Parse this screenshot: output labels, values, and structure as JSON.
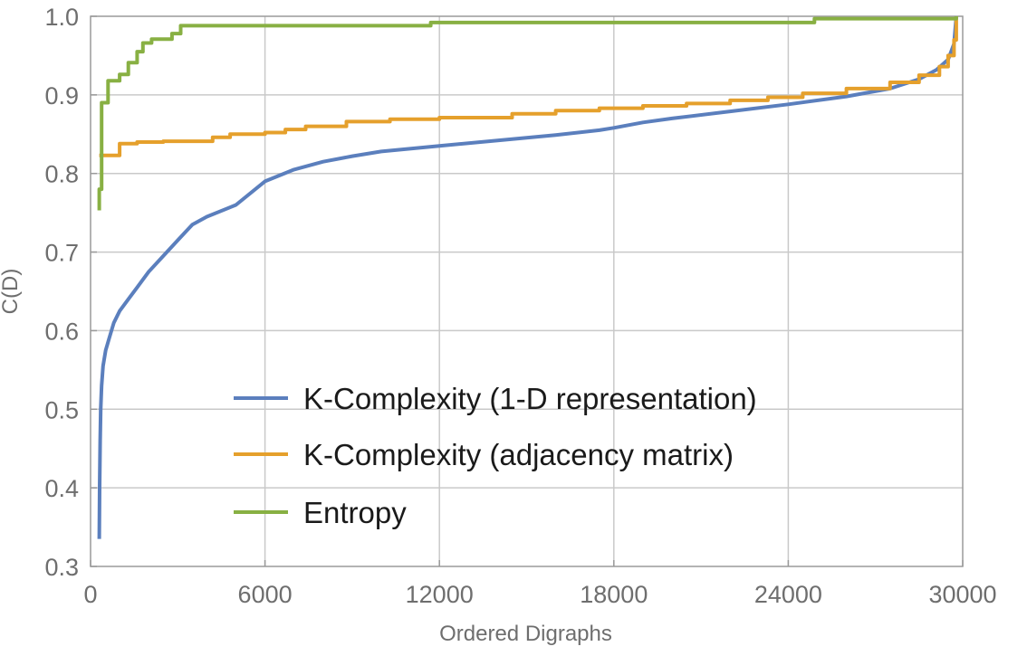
{
  "chart_data": {
    "type": "line",
    "title": "",
    "xlabel": "Ordered Digraphs",
    "ylabel": "C(D)",
    "xlim": [
      0,
      30000
    ],
    "ylim": [
      0.3,
      1.0
    ],
    "x_ticks": [
      0,
      6000,
      12000,
      18000,
      24000,
      30000
    ],
    "y_ticks": [
      0.3,
      0.4,
      0.5,
      0.6,
      0.7,
      0.8,
      0.9,
      1.0
    ],
    "y_tick_labels": [
      "0.3",
      "0.4",
      "0.5",
      "0.6",
      "0.7",
      "0.8",
      "0.9",
      "1.0"
    ],
    "grid": true,
    "legend_position": "bottom-center",
    "series": [
      {
        "name": "K-Complexity (1-D representation)",
        "color": "#5b7fbd",
        "step": false,
        "points": [
          [
            300,
            0.335
          ],
          [
            310,
            0.4
          ],
          [
            330,
            0.46
          ],
          [
            350,
            0.5
          ],
          [
            380,
            0.53
          ],
          [
            430,
            0.555
          ],
          [
            520,
            0.575
          ],
          [
            640,
            0.59
          ],
          [
            800,
            0.61
          ],
          [
            1000,
            0.625
          ],
          [
            1300,
            0.64
          ],
          [
            1600,
            0.655
          ],
          [
            2000,
            0.675
          ],
          [
            2500,
            0.695
          ],
          [
            3000,
            0.715
          ],
          [
            3500,
            0.735
          ],
          [
            4000,
            0.745
          ],
          [
            5000,
            0.76
          ],
          [
            6000,
            0.79
          ],
          [
            7000,
            0.805
          ],
          [
            8000,
            0.815
          ],
          [
            9000,
            0.822
          ],
          [
            10000,
            0.828
          ],
          [
            12000,
            0.835
          ],
          [
            14000,
            0.842
          ],
          [
            16000,
            0.849
          ],
          [
            17500,
            0.855
          ],
          [
            18000,
            0.858
          ],
          [
            19000,
            0.865
          ],
          [
            20000,
            0.87
          ],
          [
            22000,
            0.879
          ],
          [
            24000,
            0.888
          ],
          [
            26000,
            0.898
          ],
          [
            27500,
            0.908
          ],
          [
            28500,
            0.92
          ],
          [
            29100,
            0.932
          ],
          [
            29500,
            0.945
          ],
          [
            29700,
            0.965
          ],
          [
            29780,
            1.0
          ]
        ]
      },
      {
        "name": "K-Complexity (adjacency matrix)",
        "color": "#e5a02c",
        "step": true,
        "points": [
          [
            300,
            0.823
          ],
          [
            1000,
            0.823
          ],
          [
            1000,
            0.838
          ],
          [
            1600,
            0.838
          ],
          [
            1600,
            0.84
          ],
          [
            2500,
            0.84
          ],
          [
            2500,
            0.841
          ],
          [
            4200,
            0.841
          ],
          [
            4200,
            0.846
          ],
          [
            4800,
            0.846
          ],
          [
            4800,
            0.85
          ],
          [
            6000,
            0.85
          ],
          [
            6000,
            0.852
          ],
          [
            6700,
            0.852
          ],
          [
            6700,
            0.856
          ],
          [
            7400,
            0.856
          ],
          [
            7400,
            0.86
          ],
          [
            8800,
            0.86
          ],
          [
            8800,
            0.866
          ],
          [
            10300,
            0.866
          ],
          [
            10300,
            0.869
          ],
          [
            12000,
            0.869
          ],
          [
            12000,
            0.871
          ],
          [
            14500,
            0.871
          ],
          [
            14500,
            0.876
          ],
          [
            16000,
            0.876
          ],
          [
            16000,
            0.88
          ],
          [
            17500,
            0.88
          ],
          [
            17500,
            0.883
          ],
          [
            19000,
            0.883
          ],
          [
            19000,
            0.886
          ],
          [
            20500,
            0.886
          ],
          [
            20500,
            0.889
          ],
          [
            22000,
            0.889
          ],
          [
            22000,
            0.893
          ],
          [
            23300,
            0.893
          ],
          [
            23300,
            0.897
          ],
          [
            24500,
            0.897
          ],
          [
            24500,
            0.902
          ],
          [
            26000,
            0.902
          ],
          [
            26000,
            0.908
          ],
          [
            27500,
            0.908
          ],
          [
            27500,
            0.916
          ],
          [
            28500,
            0.916
          ],
          [
            28500,
            0.925
          ],
          [
            29200,
            0.925
          ],
          [
            29200,
            0.936
          ],
          [
            29500,
            0.936
          ],
          [
            29500,
            0.95
          ],
          [
            29700,
            0.95
          ],
          [
            29700,
            0.97
          ],
          [
            29780,
            0.97
          ],
          [
            29780,
            1.0
          ]
        ]
      },
      {
        "name": "Entropy",
        "color": "#88b043",
        "step": true,
        "points": [
          [
            300,
            0.753
          ],
          [
            300,
            0.78
          ],
          [
            380,
            0.78
          ],
          [
            380,
            0.89
          ],
          [
            600,
            0.89
          ],
          [
            600,
            0.918
          ],
          [
            1000,
            0.918
          ],
          [
            1000,
            0.926
          ],
          [
            1300,
            0.926
          ],
          [
            1300,
            0.941
          ],
          [
            1600,
            0.941
          ],
          [
            1600,
            0.955
          ],
          [
            1800,
            0.955
          ],
          [
            1800,
            0.966
          ],
          [
            2100,
            0.966
          ],
          [
            2100,
            0.971
          ],
          [
            2800,
            0.971
          ],
          [
            2800,
            0.978
          ],
          [
            3100,
            0.978
          ],
          [
            3100,
            0.988
          ],
          [
            11700,
            0.988
          ],
          [
            11700,
            0.992
          ],
          [
            24900,
            0.992
          ],
          [
            24900,
            0.997
          ],
          [
            29780,
            0.997
          ],
          [
            29780,
            1.0
          ]
        ]
      }
    ]
  }
}
